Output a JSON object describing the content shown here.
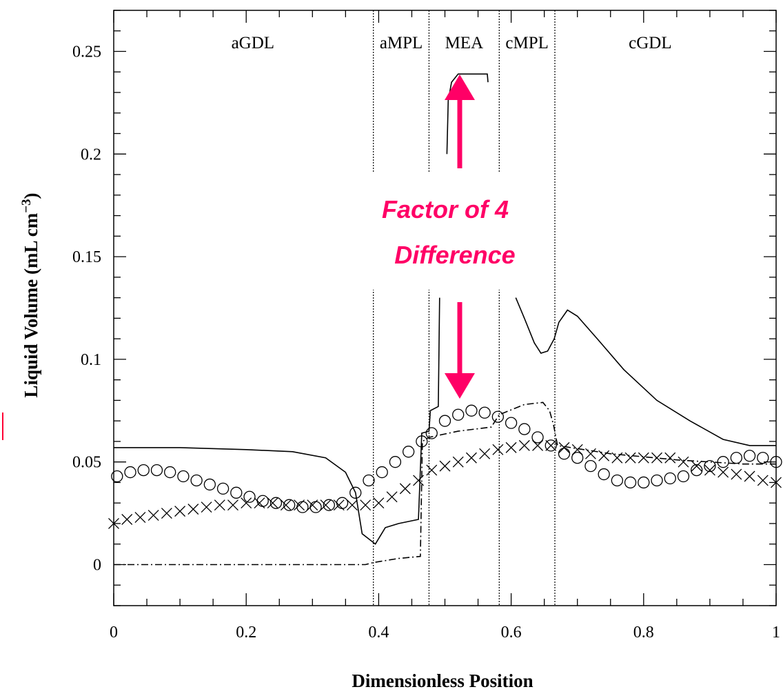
{
  "chart_data": {
    "type": "line",
    "xlabel": "Dimensionless Position",
    "ylabel": "Liquid Volume (mL cm",
    "ylabel_sup": "−3",
    "ylabel_close": ")",
    "xlim": [
      0,
      1
    ],
    "ylim": [
      -0.02,
      0.27
    ],
    "x_ticks": [
      0,
      0.2,
      0.4,
      0.6,
      0.8,
      1
    ],
    "x_tick_labels": [
      "0",
      "0.2",
      "0.4",
      "0.6",
      "0.8",
      "1"
    ],
    "y_ticks": [
      0,
      0.05,
      0.1,
      0.15,
      0.2,
      0.25
    ],
    "y_tick_labels": [
      "0",
      "0.05",
      "0.1",
      "0.15",
      "0.2",
      "0.25"
    ],
    "grid": false,
    "legend": "none",
    "region_boundaries": [
      0.392,
      0.476,
      0.582,
      0.666
    ],
    "regions": [
      {
        "label": "aGDL",
        "x": 0.21
      },
      {
        "label": "aMPL",
        "x": 0.434
      },
      {
        "label": "MEA",
        "x": 0.529
      },
      {
        "label": "cMPL",
        "x": 0.624
      },
      {
        "label": "cGDL",
        "x": 0.81
      }
    ],
    "series": [
      {
        "style": "solid",
        "points": [
          [
            0,
            0.057
          ],
          [
            0.1,
            0.057
          ],
          [
            0.2,
            0.056
          ],
          [
            0.27,
            0.055
          ],
          [
            0.32,
            0.052
          ],
          [
            0.35,
            0.045
          ],
          [
            0.365,
            0.035
          ],
          [
            0.375,
            0.015
          ],
          [
            0.395,
            0.01
          ],
          [
            0.41,
            0.018
          ],
          [
            0.43,
            0.02
          ],
          [
            0.46,
            0.022
          ],
          [
            0.465,
            0.064
          ],
          [
            0.476,
            0.065
          ],
          [
            0.478,
            0.075
          ],
          [
            0.49,
            0.077
          ],
          [
            0.492,
            0.13
          ]
        ]
      },
      {
        "style": "solid",
        "points": [
          [
            0.503,
            0.2
          ],
          [
            0.505,
            0.226
          ],
          [
            0.51,
            0.235
          ],
          [
            0.52,
            0.239
          ],
          [
            0.56,
            0.239
          ],
          [
            0.564,
            0.239
          ],
          [
            0.565,
            0.235
          ]
        ]
      },
      {
        "style": "solid",
        "points": [
          [
            0.607,
            0.13
          ],
          [
            0.62,
            0.12
          ],
          [
            0.635,
            0.108
          ],
          [
            0.645,
            0.103
          ],
          [
            0.655,
            0.104
          ],
          [
            0.665,
            0.11
          ],
          [
            0.672,
            0.118
          ],
          [
            0.685,
            0.124
          ],
          [
            0.7,
            0.121
          ],
          [
            0.73,
            0.11
          ],
          [
            0.77,
            0.095
          ],
          [
            0.82,
            0.08
          ],
          [
            0.87,
            0.07
          ],
          [
            0.92,
            0.061
          ],
          [
            0.96,
            0.058
          ],
          [
            1,
            0.058
          ]
        ]
      },
      {
        "style": "dash-dot",
        "points": [
          [
            0,
            0
          ],
          [
            0.1,
            0
          ],
          [
            0.2,
            0
          ],
          [
            0.3,
            0
          ],
          [
            0.38,
            0
          ],
          [
            0.392,
            0.001
          ],
          [
            0.43,
            0.003
          ],
          [
            0.463,
            0.004
          ],
          [
            0.466,
            0.06
          ],
          [
            0.476,
            0.062
          ],
          [
            0.52,
            0.065
          ],
          [
            0.57,
            0.067
          ],
          [
            0.582,
            0.073
          ],
          [
            0.62,
            0.078
          ],
          [
            0.648,
            0.079
          ],
          [
            0.658,
            0.075
          ],
          [
            0.664,
            0.068
          ],
          [
            0.67,
            0.058
          ],
          [
            0.75,
            0.054
          ],
          [
            0.85,
            0.051
          ],
          [
            0.95,
            0.049
          ],
          [
            1,
            0.049
          ]
        ]
      },
      {
        "style": "circle-markers",
        "points": [
          [
            0.005,
            0.043
          ],
          [
            0.025,
            0.045
          ],
          [
            0.045,
            0.046
          ],
          [
            0.065,
            0.046
          ],
          [
            0.085,
            0.045
          ],
          [
            0.105,
            0.043
          ],
          [
            0.125,
            0.041
          ],
          [
            0.145,
            0.039
          ],
          [
            0.165,
            0.037
          ],
          [
            0.185,
            0.035
          ],
          [
            0.205,
            0.033
          ],
          [
            0.225,
            0.031
          ],
          [
            0.245,
            0.03
          ],
          [
            0.265,
            0.029
          ],
          [
            0.285,
            0.028
          ],
          [
            0.305,
            0.028
          ],
          [
            0.325,
            0.029
          ],
          [
            0.345,
            0.03
          ],
          [
            0.365,
            0.035
          ],
          [
            0.385,
            0.041
          ],
          [
            0.405,
            0.045
          ],
          [
            0.425,
            0.05
          ],
          [
            0.445,
            0.055
          ],
          [
            0.465,
            0.06
          ],
          [
            0.48,
            0.064
          ],
          [
            0.5,
            0.07
          ],
          [
            0.52,
            0.073
          ],
          [
            0.54,
            0.075
          ],
          [
            0.56,
            0.074
          ],
          [
            0.58,
            0.072
          ],
          [
            0.6,
            0.069
          ],
          [
            0.62,
            0.066
          ],
          [
            0.64,
            0.062
          ],
          [
            0.66,
            0.058
          ],
          [
            0.68,
            0.054
          ],
          [
            0.7,
            0.052
          ],
          [
            0.72,
            0.048
          ],
          [
            0.74,
            0.044
          ],
          [
            0.76,
            0.041
          ],
          [
            0.78,
            0.04
          ],
          [
            0.8,
            0.04
          ],
          [
            0.82,
            0.041
          ],
          [
            0.84,
            0.042
          ],
          [
            0.86,
            0.043
          ],
          [
            0.88,
            0.046
          ],
          [
            0.9,
            0.048
          ],
          [
            0.92,
            0.05
          ],
          [
            0.94,
            0.052
          ],
          [
            0.96,
            0.053
          ],
          [
            0.98,
            0.052
          ],
          [
            1,
            0.05
          ]
        ]
      },
      {
        "style": "x-markers",
        "points": [
          [
            0,
            0.02
          ],
          [
            0.02,
            0.022
          ],
          [
            0.04,
            0.023
          ],
          [
            0.06,
            0.024
          ],
          [
            0.08,
            0.025
          ],
          [
            0.1,
            0.026
          ],
          [
            0.12,
            0.027
          ],
          [
            0.14,
            0.028
          ],
          [
            0.16,
            0.029
          ],
          [
            0.18,
            0.029
          ],
          [
            0.2,
            0.03
          ],
          [
            0.22,
            0.03
          ],
          [
            0.24,
            0.03
          ],
          [
            0.26,
            0.029
          ],
          [
            0.28,
            0.029
          ],
          [
            0.3,
            0.029
          ],
          [
            0.32,
            0.029
          ],
          [
            0.34,
            0.029
          ],
          [
            0.36,
            0.029
          ],
          [
            0.38,
            0.029
          ],
          [
            0.4,
            0.03
          ],
          [
            0.42,
            0.033
          ],
          [
            0.44,
            0.037
          ],
          [
            0.46,
            0.041
          ],
          [
            0.48,
            0.046
          ],
          [
            0.5,
            0.048
          ],
          [
            0.52,
            0.05
          ],
          [
            0.54,
            0.052
          ],
          [
            0.56,
            0.054
          ],
          [
            0.58,
            0.056
          ],
          [
            0.6,
            0.057
          ],
          [
            0.62,
            0.058
          ],
          [
            0.64,
            0.058
          ],
          [
            0.66,
            0.058
          ],
          [
            0.68,
            0.057
          ],
          [
            0.7,
            0.056
          ],
          [
            0.72,
            0.054
          ],
          [
            0.74,
            0.053
          ],
          [
            0.76,
            0.052
          ],
          [
            0.78,
            0.052
          ],
          [
            0.8,
            0.052
          ],
          [
            0.82,
            0.052
          ],
          [
            0.84,
            0.052
          ],
          [
            0.86,
            0.05
          ],
          [
            0.88,
            0.048
          ],
          [
            0.9,
            0.046
          ],
          [
            0.92,
            0.045
          ],
          [
            0.94,
            0.044
          ],
          [
            0.96,
            0.043
          ],
          [
            0.98,
            0.041
          ],
          [
            1,
            0.04
          ]
        ]
      }
    ],
    "annotations": [
      {
        "line1": "Factor of 4",
        "line2": "Difference",
        "color": "#ff0066"
      }
    ]
  },
  "colors": {
    "annotation": "#ff0066",
    "ink": "#000000"
  }
}
